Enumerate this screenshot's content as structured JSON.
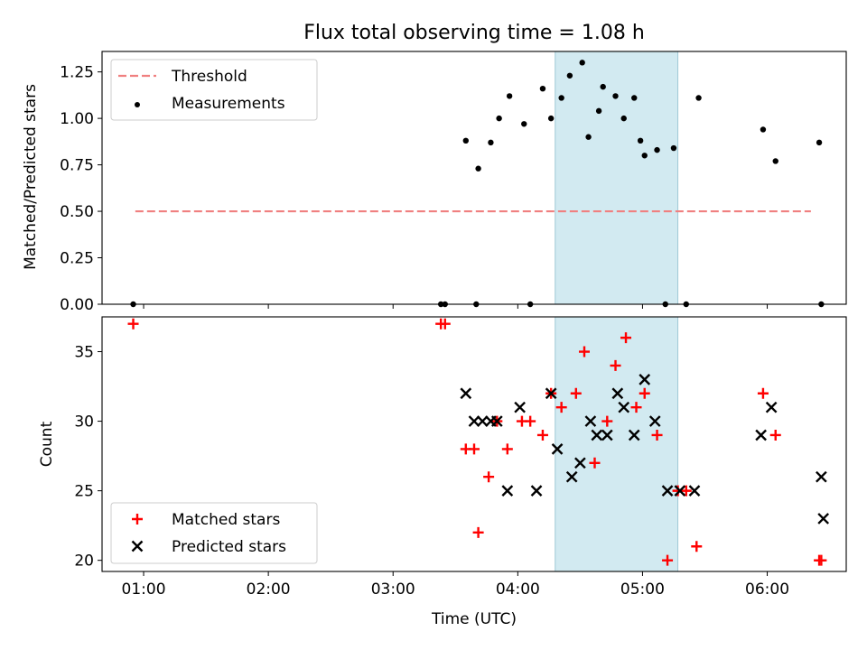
{
  "chart_data": [
    {
      "type": "scatter",
      "title": "Flux total observing time = 1.08 h",
      "xlabel": "",
      "ylabel": "Matched/Predicted stars",
      "xlim": [
        "00:40",
        "06:38"
      ],
      "ylim": [
        0,
        1.36
      ],
      "yticks": [
        0.0,
        0.25,
        0.5,
        0.75,
        1.0,
        1.25
      ],
      "ytick_labels": [
        "0.00",
        "0.25",
        "0.50",
        "0.75",
        "1.00",
        "1.25"
      ],
      "grid": false,
      "legend_position": "upper-left",
      "highlight_span": {
        "from": "04:18",
        "to": "05:17",
        "color": "#add8e6"
      },
      "series": [
        {
          "name": "Threshold",
          "style": "dashed-line",
          "color": "#f08080",
          "x": [
            "00:56",
            "06:21"
          ],
          "y": [
            0.5,
            0.5
          ]
        },
        {
          "name": "Measurements",
          "style": "dot",
          "color": "#000000",
          "x": [
            "00:55",
            "03:23",
            "03:25",
            "03:35",
            "03:40",
            "03:41",
            "03:47",
            "03:51",
            "03:56",
            "04:03",
            "04:06",
            "04:12",
            "04:16",
            "04:21",
            "04:25",
            "04:31",
            "04:34",
            "04:39",
            "04:41",
            "04:47",
            "04:51",
            "04:56",
            "04:59",
            "05:01",
            "05:07",
            "05:11",
            "05:15",
            "05:21",
            "05:27",
            "05:58",
            "06:04",
            "06:25",
            "06:26"
          ],
          "y": [
            0.0,
            0.0,
            0.0,
            0.88,
            0.0,
            0.73,
            0.87,
            1.0,
            1.12,
            0.97,
            0.0,
            1.16,
            1.0,
            1.11,
            1.23,
            1.3,
            0.9,
            1.04,
            1.17,
            1.12,
            1.0,
            1.11,
            0.88,
            0.8,
            0.83,
            0.0,
            0.84,
            0.0,
            1.11,
            0.94,
            0.77,
            0.87,
            0.0
          ]
        }
      ]
    },
    {
      "type": "scatter",
      "title": "",
      "xlabel": "Time (UTC)",
      "ylabel": "Count",
      "xlim": [
        "00:40",
        "06:38"
      ],
      "ylim": [
        19.2,
        37.5
      ],
      "yticks": [
        20,
        25,
        30,
        35
      ],
      "ytick_labels": [
        "20",
        "25",
        "30",
        "35"
      ],
      "xticks": [
        "01:00",
        "02:00",
        "03:00",
        "04:00",
        "05:00",
        "06:00"
      ],
      "grid": false,
      "legend_position": "lower-left",
      "highlight_span": {
        "from": "04:18",
        "to": "05:17",
        "color": "#add8e6"
      },
      "series": [
        {
          "name": "Matched stars",
          "marker": "plus",
          "color": "#ff0000",
          "x": [
            "00:55",
            "03:23",
            "03:25",
            "03:35",
            "03:39",
            "03:41",
            "03:46",
            "03:50",
            "03:55",
            "04:02",
            "04:06",
            "04:12",
            "04:16",
            "04:21",
            "04:28",
            "04:32",
            "04:37",
            "04:43",
            "04:47",
            "04:52",
            "04:57",
            "05:01",
            "05:07",
            "05:12",
            "05:17",
            "05:21",
            "05:26",
            "05:58",
            "06:04",
            "06:25",
            "06:26"
          ],
          "y": [
            37,
            37,
            37,
            28,
            28,
            22,
            26,
            30,
            28,
            30,
            30,
            29,
            32,
            31,
            32,
            35,
            27,
            30,
            34,
            36,
            31,
            32,
            29,
            20,
            25,
            25,
            21,
            32,
            29,
            20,
            20
          ]
        },
        {
          "name": "Predicted stars",
          "marker": "x",
          "color": "#000000",
          "x": [
            "03:35",
            "03:39",
            "03:43",
            "03:47",
            "03:50",
            "03:55",
            "04:01",
            "04:09",
            "04:16",
            "04:19",
            "04:26",
            "04:30",
            "04:35",
            "04:38",
            "04:43",
            "04:48",
            "04:51",
            "04:56",
            "05:01",
            "05:06",
            "05:12",
            "05:18",
            "05:25",
            "05:57",
            "06:02",
            "06:26",
            "06:27"
          ],
          "y": [
            32,
            30,
            30,
            30,
            30,
            25,
            31,
            25,
            32,
            28,
            26,
            27,
            30,
            29,
            29,
            32,
            31,
            29,
            33,
            30,
            25,
            25,
            25,
            29,
            31,
            26,
            23
          ]
        }
      ]
    }
  ]
}
